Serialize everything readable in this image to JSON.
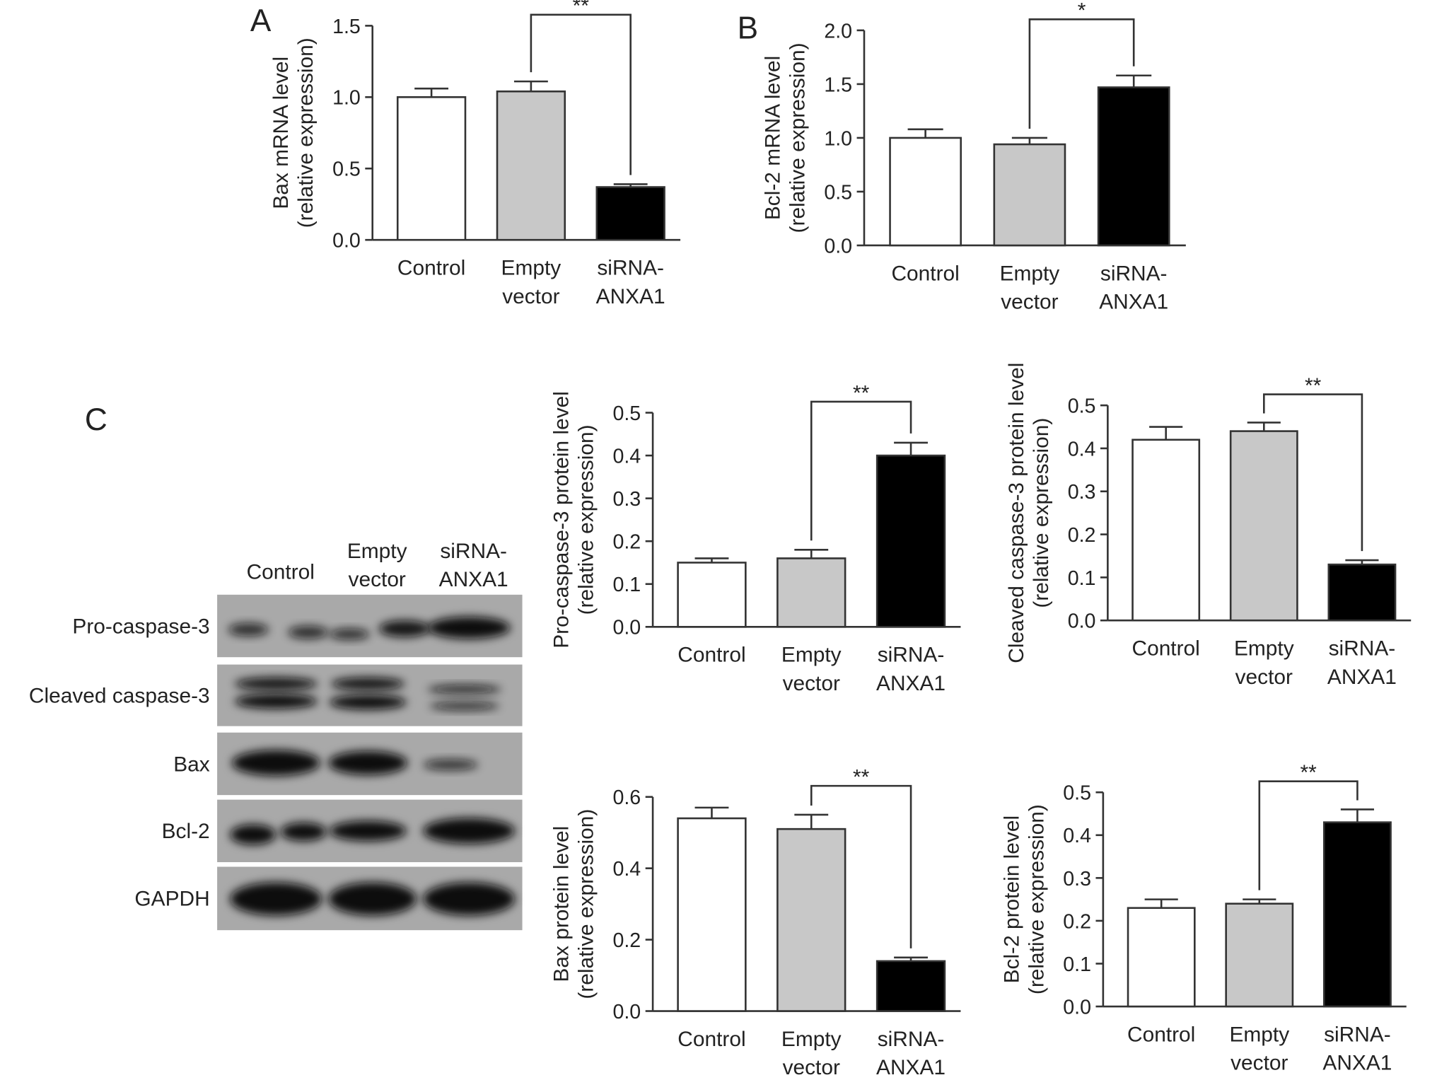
{
  "panel_labels": [
    "A",
    "B",
    "C"
  ],
  "blot": {
    "lanes": [
      "Control",
      "Empty vector",
      "siRNA-ANXA1"
    ],
    "rows": [
      "Pro-caspase-3",
      "Cleaved caspase-3",
      "Bax",
      "Bcl-2",
      "GAPDH"
    ]
  },
  "chart_data": [
    {
      "type": "bar",
      "ylabel": [
        "Bax mRNA level",
        "(relative expression)"
      ],
      "categories": [
        "Control",
        "Empty vector",
        "siRNA-ANXA1"
      ],
      "colors": [
        "#ffffff",
        "#c8c8c8",
        "#000000"
      ],
      "values": [
        1.0,
        1.04,
        0.37
      ],
      "errors": [
        0.06,
        0.07,
        0.02
      ],
      "ylim": [
        0,
        1.5
      ],
      "yticks": [
        {
          "value": 0,
          "label": "0.0"
        },
        0.5,
        {
          "value": 1,
          "label": "1.0"
        },
        1.5
      ],
      "significance": {
        "from": 1,
        "to": 2,
        "label": "**"
      }
    },
    {
      "type": "bar",
      "ylabel": [
        "Bcl-2 mRNA level",
        "(relative expression)"
      ],
      "categories": [
        "Control",
        "Empty vector",
        "siRNA-ANXA1"
      ],
      "colors": [
        "#ffffff",
        "#c8c8c8",
        "#000000"
      ],
      "values": [
        1.0,
        0.94,
        1.47
      ],
      "errors": [
        0.08,
        0.06,
        0.11
      ],
      "ylim": [
        0,
        2
      ],
      "yticks": [
        {
          "value": 0,
          "label": "0.0"
        },
        0.5,
        {
          "value": 1,
          "label": "1.0"
        },
        1.5,
        {
          "value": 2,
          "label": "2.0"
        }
      ],
      "significance": {
        "from": 1,
        "to": 2,
        "label": "*"
      }
    },
    {
      "type": "bar",
      "ylabel": [
        "Pro-caspase-3 protein level",
        "(relative expression)"
      ],
      "categories": [
        "Control",
        "Empty vector",
        "siRNA-ANXA1"
      ],
      "colors": [
        "#ffffff",
        "#c8c8c8",
        "#000000"
      ],
      "values": [
        0.15,
        0.16,
        0.4
      ],
      "errors": [
        0.01,
        0.02,
        0.03
      ],
      "ylim": [
        0,
        0.5
      ],
      "yticks": [
        {
          "value": 0,
          "label": "0.0"
        },
        0.1,
        0.2,
        0.3,
        0.4,
        0.5
      ],
      "significance": {
        "from": 1,
        "to": 2,
        "label": "**"
      }
    },
    {
      "type": "bar",
      "ylabel": [
        "Cleaved caspase-3 protein level",
        "(relative expression)"
      ],
      "categories": [
        "Control",
        "Empty vector",
        "siRNA-ANXA1"
      ],
      "colors": [
        "#ffffff",
        "#c8c8c8",
        "#000000"
      ],
      "values": [
        0.42,
        0.44,
        0.13
      ],
      "errors": [
        0.03,
        0.02,
        0.01
      ],
      "ylim": [
        0,
        0.5
      ],
      "yticks": [
        {
          "value": 0,
          "label": "0.0"
        },
        0.1,
        0.2,
        0.3,
        0.4,
        0.5
      ],
      "significance": {
        "from": 1,
        "to": 2,
        "label": "**"
      }
    },
    {
      "type": "bar",
      "ylabel": [
        "Bax protein level",
        "(relative expression)"
      ],
      "categories": [
        "Control",
        "Empty vector",
        "siRNA-ANXA1"
      ],
      "colors": [
        "#ffffff",
        "#c8c8c8",
        "#000000"
      ],
      "values": [
        0.54,
        0.51,
        0.14
      ],
      "errors": [
        0.03,
        0.04,
        0.01
      ],
      "ylim": [
        0,
        0.6
      ],
      "yticks": [
        {
          "value": 0,
          "label": "0.0"
        },
        0.2,
        0.4,
        0.6
      ],
      "significance": {
        "from": 1,
        "to": 2,
        "label": "**"
      }
    },
    {
      "type": "bar",
      "ylabel": [
        "Bcl-2 protein level",
        "(relative expression)"
      ],
      "categories": [
        "Control",
        "Empty vector",
        "siRNA-ANXA1"
      ],
      "colors": [
        "#ffffff",
        "#c8c8c8",
        "#000000"
      ],
      "values": [
        0.23,
        0.24,
        0.43
      ],
      "errors": [
        0.02,
        0.01,
        0.03
      ],
      "ylim": [
        0,
        0.5
      ],
      "yticks": [
        {
          "value": 0,
          "label": "0.0"
        },
        0.1,
        0.2,
        0.3,
        0.4,
        0.5
      ],
      "significance": {
        "from": 1,
        "to": 2,
        "label": "**"
      }
    }
  ]
}
